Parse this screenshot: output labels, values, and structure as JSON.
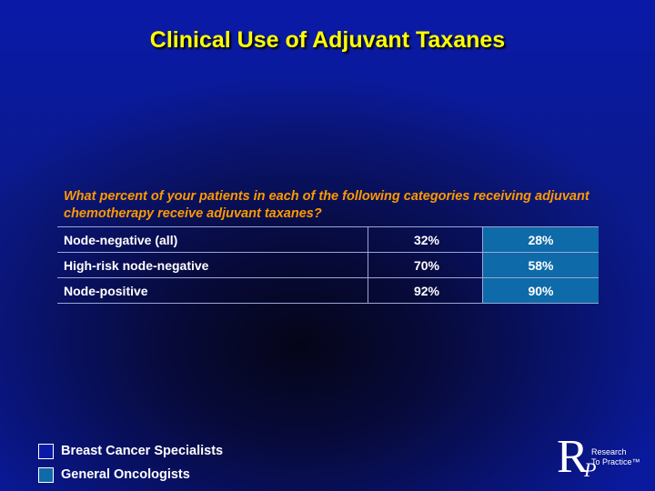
{
  "title": "Clinical Use of Adjuvant Taxanes",
  "question": "What percent of your patients in each of the following categories receiving adjuvant chemotherapy receive adjuvant taxanes?",
  "rows": [
    {
      "label": "Node-negative (all)",
      "breast_cancer_specialists": "32%",
      "general_oncologists": "28%"
    },
    {
      "label": "High-risk node-negative",
      "breast_cancer_specialists": "70%",
      "general_oncologists": "58%"
    },
    {
      "label": "Node-positive",
      "breast_cancer_specialists": "92%",
      "general_oncologists": "90%"
    }
  ],
  "legend": [
    {
      "label": "Breast Cancer Specialists",
      "color": "#0a1aa8"
    },
    {
      "label": "General Oncologists",
      "color": "#0e6aa8"
    }
  ],
  "logo": {
    "initial": "R",
    "subinitial": "P",
    "line1": "Research",
    "line2": "To Practice™"
  },
  "colors": {
    "title": "#ffff00",
    "question": "#ff9900",
    "text": "#ffffff"
  }
}
